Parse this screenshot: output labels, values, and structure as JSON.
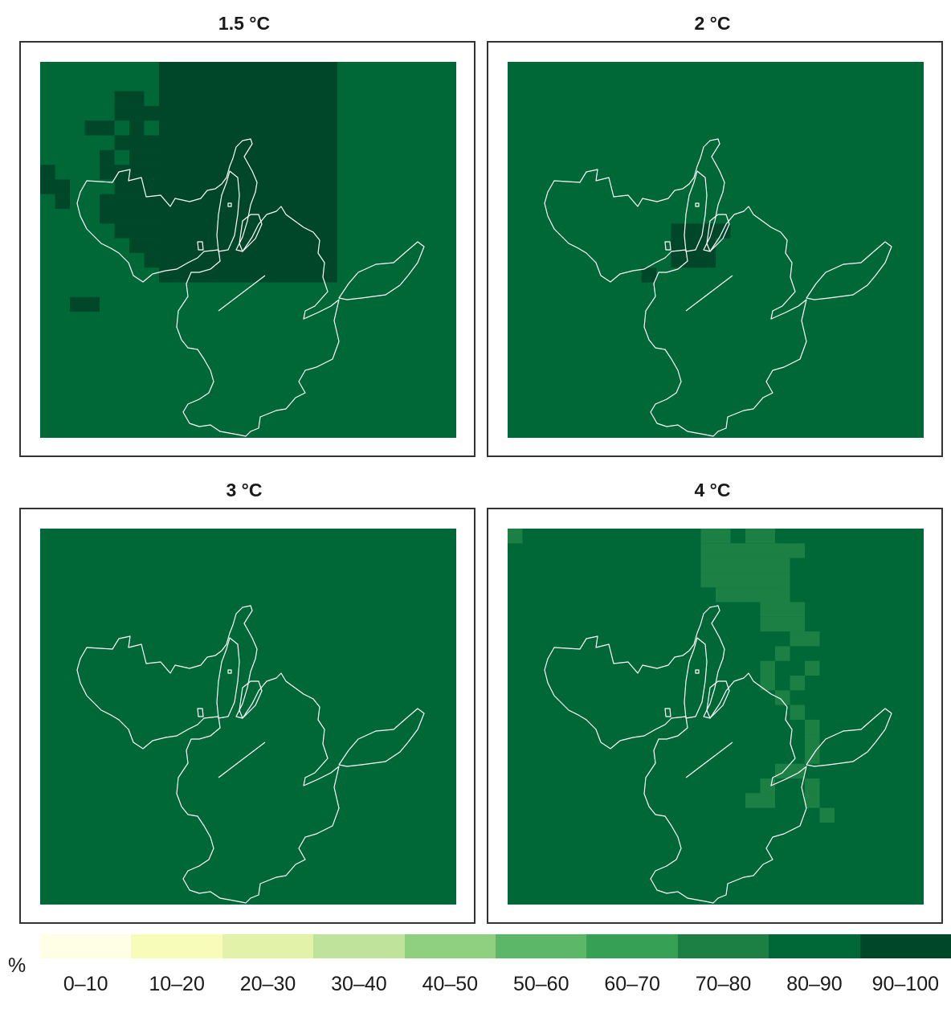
{
  "panels": [
    {
      "title": "1.5 °C",
      "base_class": "80–90",
      "cells": [
        {
          "col": 8,
          "row": 0,
          "w": 12,
          "h": 15,
          "cls": "90–100"
        },
        {
          "col": 5,
          "row": 2,
          "w": 2,
          "h": 1,
          "cls": "90–100"
        },
        {
          "col": 5,
          "row": 3,
          "w": 3,
          "h": 1,
          "cls": "90–100"
        },
        {
          "col": 4,
          "row": 4,
          "w": 1,
          "h": 1,
          "cls": "90–100"
        },
        {
          "col": 6,
          "row": 4,
          "w": 1,
          "h": 1,
          "cls": "90–100"
        },
        {
          "col": 3,
          "row": 4,
          "w": 1,
          "h": 1,
          "cls": "90–100"
        },
        {
          "col": 5,
          "row": 5,
          "w": 2,
          "h": 1,
          "cls": "90–100"
        },
        {
          "col": 7,
          "row": 5,
          "w": 1,
          "h": 1,
          "cls": "90–100"
        },
        {
          "col": 4,
          "row": 6,
          "w": 1,
          "h": 1,
          "cls": "90–100"
        },
        {
          "col": 6,
          "row": 6,
          "w": 2,
          "h": 1,
          "cls": "90–100"
        },
        {
          "col": 4,
          "row": 7,
          "w": 3,
          "h": 1,
          "cls": "90–100"
        },
        {
          "col": 7,
          "row": 7,
          "w": 1,
          "h": 1,
          "cls": "90–100"
        },
        {
          "col": 0,
          "row": 7,
          "w": 1,
          "h": 1,
          "cls": "90–100"
        },
        {
          "col": 0,
          "row": 8,
          "w": 2,
          "h": 1,
          "cls": "90–100"
        },
        {
          "col": 1,
          "row": 9,
          "w": 1,
          "h": 1,
          "cls": "90–100"
        },
        {
          "col": 5,
          "row": 8,
          "w": 3,
          "h": 1,
          "cls": "90–100"
        },
        {
          "col": 4,
          "row": 9,
          "w": 4,
          "h": 1,
          "cls": "90–100"
        },
        {
          "col": 4,
          "row": 10,
          "w": 4,
          "h": 1,
          "cls": "90–100"
        },
        {
          "col": 5,
          "row": 11,
          "w": 3,
          "h": 1,
          "cls": "90–100"
        },
        {
          "col": 6,
          "row": 12,
          "w": 2,
          "h": 1,
          "cls": "90–100"
        },
        {
          "col": 7,
          "row": 13,
          "w": 1,
          "h": 1,
          "cls": "90–100"
        },
        {
          "col": 2,
          "row": 16,
          "w": 1,
          "h": 1,
          "cls": "90–100"
        },
        {
          "col": 3,
          "row": 16,
          "w": 1,
          "h": 1,
          "cls": "90–100"
        }
      ]
    },
    {
      "title": "2 °C",
      "base_class": "80–90",
      "cells": [
        {
          "col": 11,
          "row": 11,
          "w": 4,
          "h": 1,
          "cls": "90–100"
        },
        {
          "col": 11,
          "row": 12,
          "w": 3,
          "h": 2,
          "cls": "90–100"
        },
        {
          "col": 9,
          "row": 14,
          "w": 1,
          "h": 1,
          "cls": "90–100"
        }
      ]
    },
    {
      "title": "3 °C",
      "base_class": "80–90",
      "cells": []
    },
    {
      "title": "4 °C",
      "base_class": "80–90",
      "cells": [
        {
          "col": 0,
          "row": 0,
          "w": 1,
          "h": 1,
          "cls": "70–80"
        },
        {
          "col": 13,
          "row": 0,
          "w": 5,
          "h": 1,
          "cls": "70–80"
        },
        {
          "col": 15,
          "row": 0,
          "w": 1,
          "h": 1,
          "cls": "80–90"
        },
        {
          "col": 13,
          "row": 1,
          "w": 7,
          "h": 1,
          "cls": "70–80"
        },
        {
          "col": 13,
          "row": 2,
          "w": 6,
          "h": 1,
          "cls": "70–80"
        },
        {
          "col": 13,
          "row": 3,
          "w": 6,
          "h": 1,
          "cls": "70–80"
        },
        {
          "col": 14,
          "row": 4,
          "w": 5,
          "h": 1,
          "cls": "70–80"
        },
        {
          "col": 18,
          "row": 4,
          "w": 1,
          "h": 1,
          "cls": "70–80"
        },
        {
          "col": 17,
          "row": 5,
          "w": 3,
          "h": 1,
          "cls": "70–80"
        },
        {
          "col": 17,
          "row": 6,
          "w": 2,
          "h": 1,
          "cls": "70–80"
        },
        {
          "col": 19,
          "row": 6,
          "w": 1,
          "h": 1,
          "cls": "70–80"
        },
        {
          "col": 19,
          "row": 7,
          "w": 1,
          "h": 1,
          "cls": "70–80"
        },
        {
          "col": 18,
          "row": 8,
          "w": 1,
          "h": 1,
          "cls": "70–80"
        },
        {
          "col": 20,
          "row": 7,
          "w": 1,
          "h": 1,
          "cls": "70–80"
        },
        {
          "col": 20,
          "row": 9,
          "w": 1,
          "h": 1,
          "cls": "70–80"
        },
        {
          "col": 19,
          "row": 10,
          "w": 1,
          "h": 1,
          "cls": "70–80"
        },
        {
          "col": 17,
          "row": 9,
          "w": 1,
          "h": 1,
          "cls": "70–80"
        },
        {
          "col": 17,
          "row": 10,
          "w": 1,
          "h": 1,
          "cls": "70–80"
        },
        {
          "col": 18,
          "row": 11,
          "w": 1,
          "h": 1,
          "cls": "70–80"
        },
        {
          "col": 19,
          "row": 12,
          "w": 1,
          "h": 1,
          "cls": "70–80"
        },
        {
          "col": 20,
          "row": 13,
          "w": 1,
          "h": 1,
          "cls": "70–80"
        },
        {
          "col": 20,
          "row": 14,
          "w": 1,
          "h": 1,
          "cls": "70–80"
        },
        {
          "col": 20,
          "row": 15,
          "w": 1,
          "h": 1,
          "cls": "70–80"
        },
        {
          "col": 18,
          "row": 16,
          "w": 2,
          "h": 1,
          "cls": "70–80"
        },
        {
          "col": 17,
          "row": 17,
          "w": 1,
          "h": 1,
          "cls": "70–80"
        },
        {
          "col": 20,
          "row": 17,
          "w": 1,
          "h": 1,
          "cls": "70–80"
        },
        {
          "col": 16,
          "row": 18,
          "w": 1,
          "h": 1,
          "cls": "70–80"
        },
        {
          "col": 17,
          "row": 18,
          "w": 1,
          "h": 1,
          "cls": "70–80"
        },
        {
          "col": 20,
          "row": 18,
          "w": 1,
          "h": 1,
          "cls": "70–80"
        },
        {
          "col": 21,
          "row": 19,
          "w": 1,
          "h": 1,
          "cls": "70–80"
        }
      ]
    }
  ],
  "legend": {
    "unit": "%",
    "classes": [
      {
        "label": "0–10",
        "color": "#ffffe5"
      },
      {
        "label": "10–20",
        "color": "#f7fcb9"
      },
      {
        "label": "20–30",
        "color": "#e2f3a9"
      },
      {
        "label": "30–40",
        "color": "#bfe39a"
      },
      {
        "label": "40–50",
        "color": "#8fcf80"
      },
      {
        "label": "50–60",
        "color": "#5cb868"
      },
      {
        "label": "60–70",
        "color": "#36a154"
      },
      {
        "label": "70–80",
        "color": "#1c8044"
      },
      {
        "label": "80–90",
        "color": "#006837"
      },
      {
        "label": "90–100",
        "color": "#00472a"
      }
    ]
  },
  "outline_color": "#ffffff"
}
